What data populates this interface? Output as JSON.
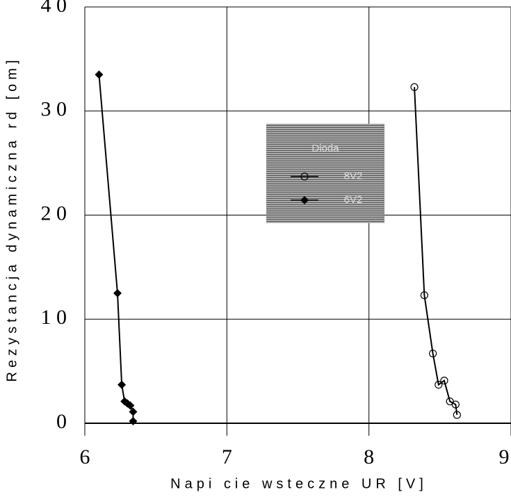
{
  "chart_data": {
    "type": "scatter",
    "x_label": "Napi cie wsteczne UR [V]",
    "y_label": "Rezystancja dynamiczna rd [om]",
    "legend_title": "Dioda",
    "xlim": [
      6,
      9
    ],
    "xticks": [
      6,
      7,
      8,
      9
    ],
    "ylim": [
      0,
      40
    ],
    "yticks": [
      {
        "value": 0,
        "label": "0"
      },
      {
        "value": 10,
        "label": "1 0"
      },
      {
        "value": 20,
        "label": "2 0"
      },
      {
        "value": 30,
        "label": "3 0"
      },
      {
        "value": 40,
        "label": "4 0"
      }
    ],
    "grid": true,
    "series": [
      {
        "name": "8V2",
        "marker": "circle",
        "color": "#000000",
        "x": [
          8.32,
          8.39,
          8.45,
          8.49,
          8.53,
          8.57,
          8.61,
          8.62
        ],
        "values": [
          32.3,
          12.3,
          6.7,
          3.7,
          4.1,
          2.1,
          1.8,
          0.8
        ]
      },
      {
        "name": "6V2",
        "marker": "diamond",
        "color": "#000000",
        "x": [
          6.1,
          6.23,
          6.26,
          6.28,
          6.3,
          6.32,
          6.34,
          6.34
        ],
        "values": [
          33.5,
          12.5,
          3.7,
          2.1,
          1.9,
          1.7,
          1.1,
          0.2
        ]
      }
    ]
  }
}
